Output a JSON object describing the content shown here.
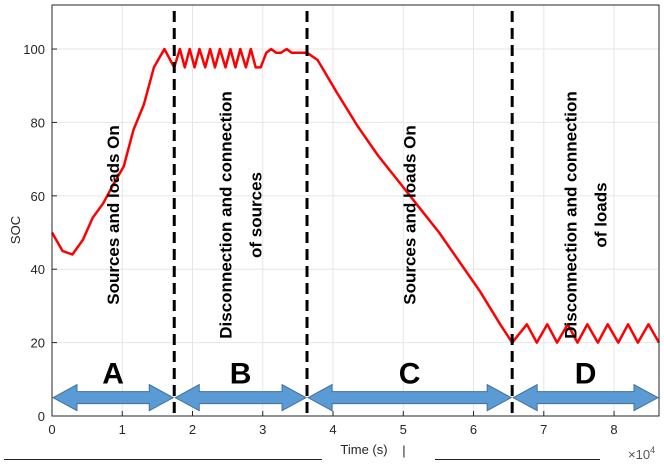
{
  "chart_data": {
    "type": "line",
    "xlabel": "Time (s)",
    "ylabel": "SOC",
    "x_exponent_label": "×10",
    "x_exponent_power": "4",
    "xlim": [
      0,
      86400
    ],
    "ylim": [
      0,
      112
    ],
    "xticks": [
      0,
      10000,
      20000,
      30000,
      40000,
      50000,
      60000,
      70000,
      80000
    ],
    "xtick_labels": [
      "0",
      "1",
      "2",
      "3",
      "4",
      "5",
      "6",
      "7",
      "8"
    ],
    "yticks": [
      0,
      20,
      40,
      60,
      80,
      100
    ],
    "ytick_labels": [
      "0",
      "20",
      "40",
      "60",
      "80",
      "100"
    ],
    "grid": true,
    "line_color": "#ff0000",
    "series": [
      {
        "x": [
          0,
          1500,
          2900,
          4400,
          5800,
          7300,
          8700,
          10200,
          11600,
          13100,
          14500,
          16000,
          17400,
          18200,
          18900,
          19600,
          20300,
          21000,
          21800,
          22500,
          23200,
          23900,
          24700,
          25400,
          26100,
          26800,
          27600,
          28300,
          29000,
          29700,
          30500,
          31200,
          31900,
          32600,
          33400,
          34100,
          34800,
          35600,
          36300,
          37800,
          40600,
          43500,
          46400,
          49300,
          52200,
          55100,
          58000,
          60900,
          63800,
          65500,
          67600,
          69000,
          70500,
          71900,
          73400,
          74800,
          76200,
          77700,
          79100,
          80600,
          82000,
          83400,
          84900,
          86400
        ],
        "y": [
          50,
          45,
          44,
          48,
          54,
          58,
          63,
          68,
          78,
          85,
          95,
          100,
          95,
          100,
          95,
          100,
          95,
          100,
          95,
          100,
          95,
          100,
          95,
          100,
          95,
          100,
          95,
          100,
          95,
          95,
          99,
          100,
          99,
          99,
          100,
          99,
          99,
          99,
          99,
          97,
          88,
          79,
          71,
          64,
          57,
          50,
          42,
          34,
          25,
          20,
          25,
          20,
          25,
          20,
          25,
          20,
          25,
          20,
          25,
          20,
          25,
          20,
          25,
          20
        ]
      }
    ],
    "dividers_x": [
      17400,
      36300,
      65500
    ],
    "regions": [
      {
        "letter": "A",
        "x_start": 0,
        "x_end": 17400,
        "label_lines": [
          "Sources and loads On"
        ]
      },
      {
        "letter": "B",
        "x_start": 17400,
        "x_end": 36300,
        "label_lines": [
          "Disconnection and connection",
          "of sources"
        ]
      },
      {
        "letter": "C",
        "x_start": 36300,
        "x_end": 65500,
        "label_lines": [
          "Sources and loads On"
        ]
      },
      {
        "letter": "D",
        "x_start": 65500,
        "x_end": 86400,
        "label_lines": [
          "Disconnection and connection",
          "of loads"
        ]
      }
    ],
    "arrow_y": 5,
    "arrow_color": "#5b9bd5",
    "arrow_edge_color": "#41719c",
    "separator_text": "|"
  }
}
